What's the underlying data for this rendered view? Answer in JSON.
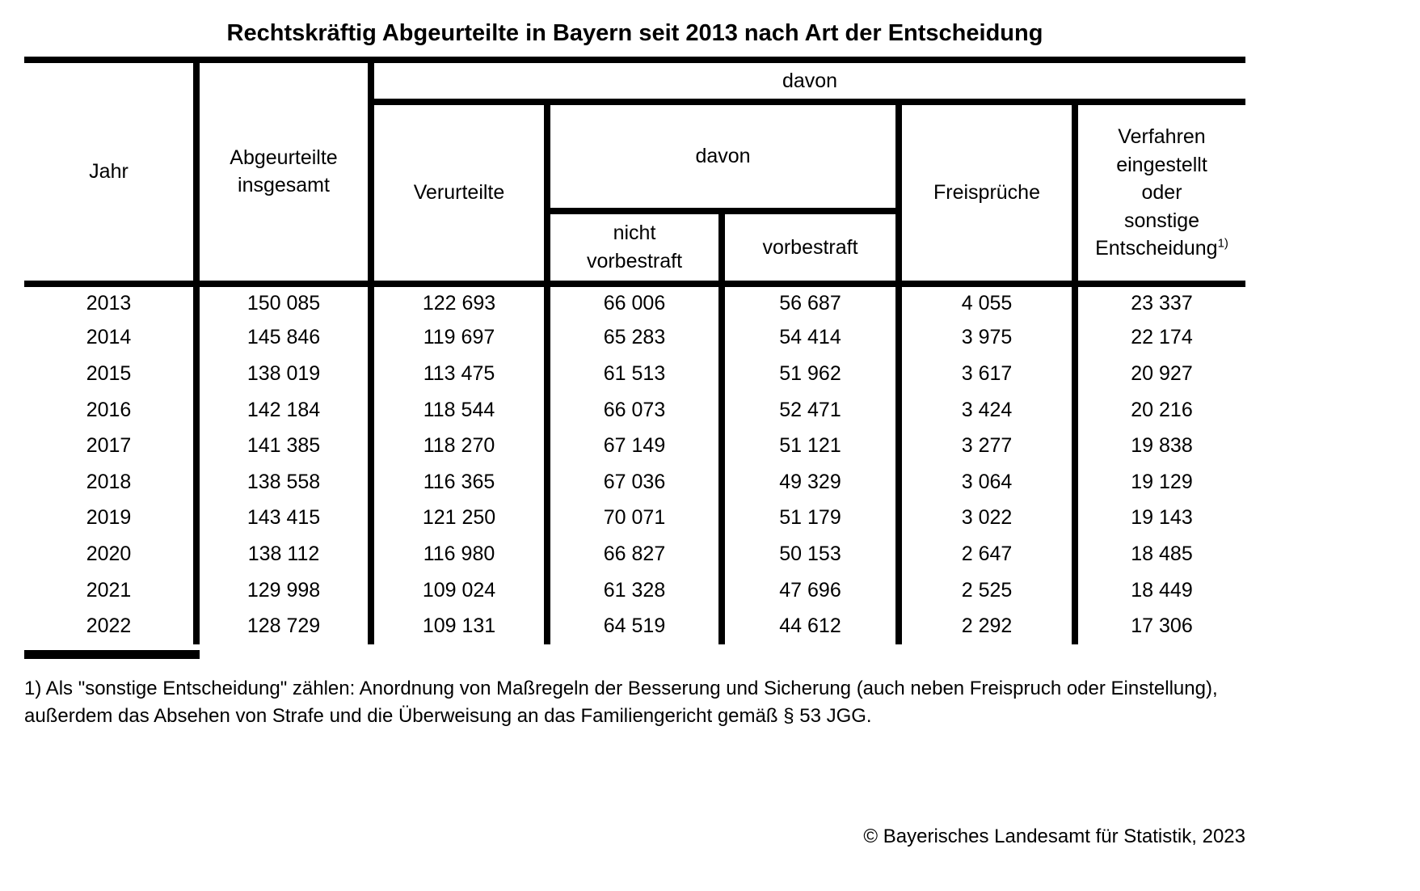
{
  "title": "Rechtskräftig Abgeurteilte in Bayern seit 2013 nach Art der Entscheidung",
  "table": {
    "headers": {
      "jahr": "Jahr",
      "abgeurteilte_insgesamt": "Abgeurteilte\ninsgesamt",
      "davon_outer": "davon",
      "verurteilte": "Verurteilte",
      "davon_inner": "davon",
      "nicht_vorbestraft": "nicht\nvorbestraft",
      "vorbestraft": "vorbestraft",
      "freisprueche": "Freisprüche",
      "verfahren_lines": "Verfahren\neingestellt\noder\nsonstige",
      "verfahren_last": "Entscheidung",
      "footnote_marker": "1)"
    },
    "rows": [
      [
        "2013",
        "150 085",
        "122 693",
        "66 006",
        "56 687",
        "4 055",
        "23 337"
      ],
      [
        "2014",
        "145 846",
        "119 697",
        "65 283",
        "54 414",
        "3 975",
        "22 174"
      ],
      [
        "2015",
        "138 019",
        "113 475",
        "61 513",
        "51 962",
        "3 617",
        "20 927"
      ],
      [
        "2016",
        "142 184",
        "118 544",
        "66 073",
        "52 471",
        "3 424",
        "20 216"
      ],
      [
        "2017",
        "141 385",
        "118 270",
        "67 149",
        "51 121",
        "3 277",
        "19 838"
      ],
      [
        "2018",
        "138 558",
        "116 365",
        "67 036",
        "49 329",
        "3 064",
        "19 129"
      ],
      [
        "2019",
        "143 415",
        "121 250",
        "70 071",
        "51 179",
        "3 022",
        "19 143"
      ],
      [
        "2020",
        "138 112",
        "116 980",
        "66 827",
        "50 153",
        "2 647",
        "18 485"
      ],
      [
        "2021",
        "129 998",
        "109 024",
        "61 328",
        "47 696",
        "2 525",
        "18 449"
      ],
      [
        "2022",
        "128 729",
        "109 131",
        "64 519",
        "44 612",
        "2 292",
        "17 306"
      ]
    ]
  },
  "footnote": "1) Als \"sonstige Entscheidung\" zählen: Anordnung von Maßregeln der Besserung und Sicherung (auch neben Freispruch oder Einstellung), außerdem das Absehen von Strafe und die Überweisung an das Familiengericht gemäß § 53 JGG.",
  "source": "© Bayerisches Landesamt für Statistik, 2023",
  "colors": {
    "text": "#000000",
    "background": "#ffffff",
    "border": "#000000"
  },
  "chart_data": {
    "type": "table",
    "title": "Rechtskräftig Abgeurteilte in Bayern seit 2013 nach Art der Entscheidung",
    "columns": [
      "Jahr",
      "Abgeurteilte insgesamt",
      "davon: Verurteilte",
      "davon Verurteilte: nicht vorbestraft",
      "davon Verurteilte: vorbestraft",
      "davon: Freisprüche",
      "davon: Verfahren eingestellt oder sonstige Entscheidung 1)"
    ],
    "rows": [
      [
        2013,
        150085,
        122693,
        66006,
        56687,
        4055,
        23337
      ],
      [
        2014,
        145846,
        119697,
        65283,
        54414,
        3975,
        22174
      ],
      [
        2015,
        138019,
        113475,
        61513,
        51962,
        3617,
        20927
      ],
      [
        2016,
        142184,
        118544,
        66073,
        52471,
        3424,
        20216
      ],
      [
        2017,
        141385,
        118270,
        67149,
        51121,
        3277,
        19838
      ],
      [
        2018,
        138558,
        116365,
        67036,
        49329,
        3064,
        19129
      ],
      [
        2019,
        143415,
        121250,
        70071,
        51179,
        3022,
        19143
      ],
      [
        2020,
        138112,
        116980,
        66827,
        50153,
        2647,
        18485
      ],
      [
        2021,
        129998,
        109024,
        61328,
        47696,
        2525,
        18449
      ],
      [
        2022,
        128729,
        109131,
        64519,
        44612,
        2292,
        17306
      ]
    ],
    "footnote": "1) Als \"sonstige Entscheidung\" zählen: Anordnung von Maßregeln der Besserung und Sicherung (auch neben Freispruch oder Einstellung), außerdem das Absehen von Strafe und die Überweisung an das Familiengericht gemäß § 53 JGG.",
    "source": "© Bayerisches Landesamt für Statistik, 2023"
  }
}
